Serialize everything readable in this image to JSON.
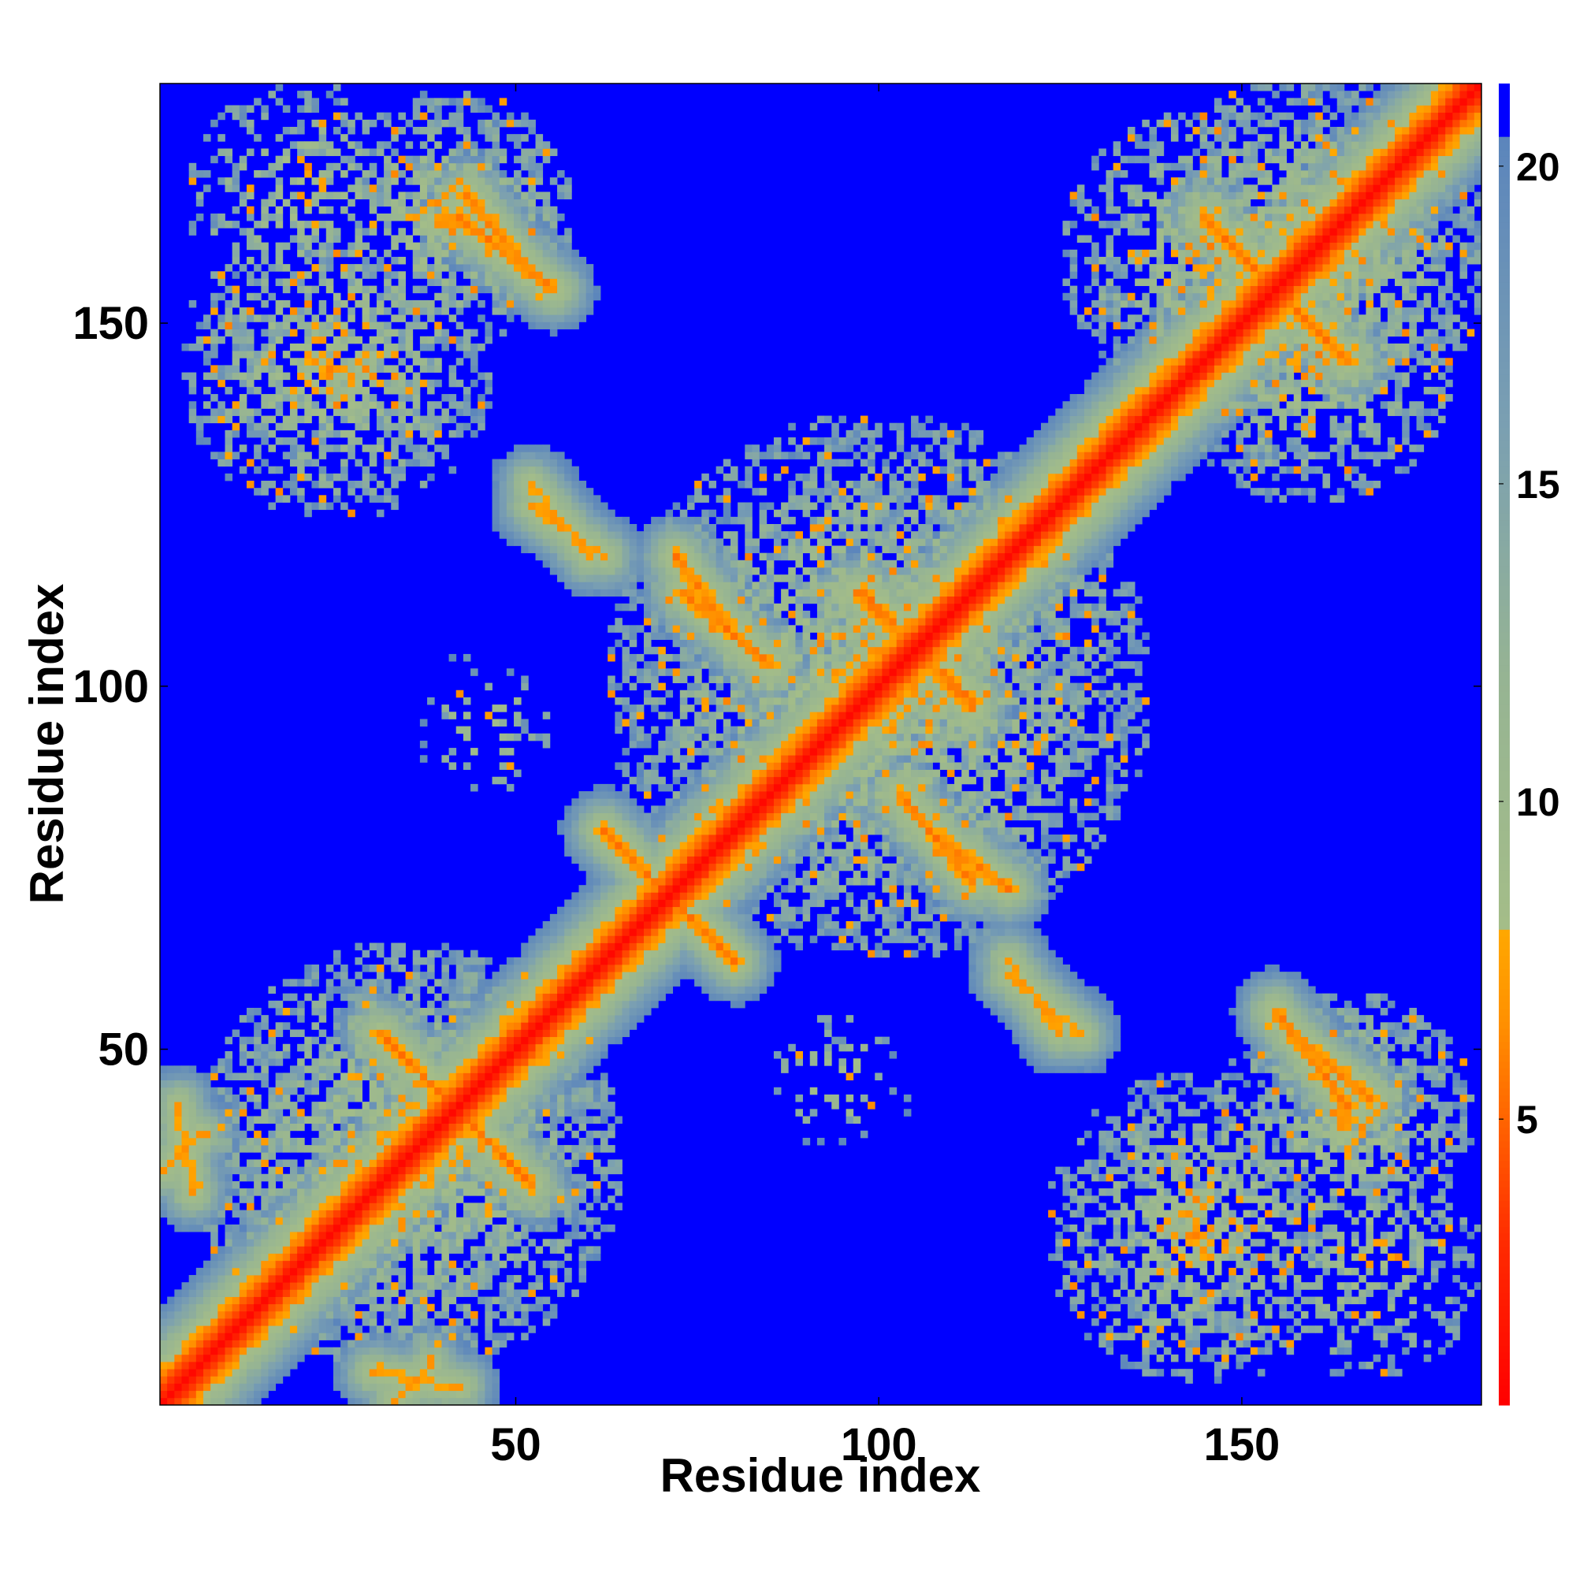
{
  "chart_data": {
    "type": "heatmap",
    "title": "",
    "xlabel": "Residue index",
    "ylabel": "Residue index",
    "n_residues": 183,
    "xlim": [
      1,
      183
    ],
    "ylim": [
      1,
      183
    ],
    "x_ticks": [
      50,
      100,
      150
    ],
    "y_ticks": [
      50,
      100,
      150
    ],
    "colorbar": {
      "range": [
        0.5,
        21.3
      ],
      "ticks": [
        5,
        10,
        15,
        20
      ],
      "stops": [
        {
          "value": 0.5,
          "color": "#ff0000"
        },
        {
          "value": 3.0,
          "color": "#ff2a00"
        },
        {
          "value": 5.0,
          "color": "#ff6400"
        },
        {
          "value": 6.5,
          "color": "#ff9000"
        },
        {
          "value": 8.0,
          "color": "#ffa800"
        },
        {
          "value": 8.01,
          "color": "#a4bd88"
        },
        {
          "value": 12.0,
          "color": "#96b493"
        },
        {
          "value": 16.0,
          "color": "#7a9fb2"
        },
        {
          "value": 20.5,
          "color": "#5b85bc"
        },
        {
          "value": 20.51,
          "color": "#0000ff"
        },
        {
          "value": 21.3,
          "color": "#0000ff"
        }
      ]
    },
    "contact_segments": [
      {
        "kind": "diagonal",
        "from": [
          1,
          1
        ],
        "to": [
          183,
          183
        ],
        "distance": 1
      },
      {
        "kind": "anti",
        "from": [
          31,
          52
        ],
        "to": [
          51,
          32
        ],
        "distance": 6
      },
      {
        "kind": "anti",
        "from": [
          42,
          165
        ],
        "to": [
          55,
          155
        ],
        "distance": 6
      },
      {
        "kind": "anti",
        "from": [
          64,
          78
        ],
        "to": [
          80,
          62
        ],
        "distance": 6
      },
      {
        "kind": "anti",
        "from": [
          73,
          113
        ],
        "to": [
          85,
          103
        ],
        "distance": 6
      },
      {
        "kind": "anti",
        "from": [
          97,
          113
        ],
        "to": [
          113,
          98
        ],
        "distance": 6
      },
      {
        "kind": "anti",
        "from": [
          107,
          80
        ],
        "to": [
          118,
          72
        ],
        "distance": 6
      },
      {
        "kind": "anti",
        "from": [
          145,
          165
        ],
        "to": [
          165,
          145
        ],
        "distance": 6
      },
      {
        "kind": "anti",
        "from": [
          157,
          52
        ],
        "to": [
          168,
          43
        ],
        "distance": 6
      },
      {
        "kind": "parallel",
        "from": [
          52,
          125
        ],
        "to": [
          62,
          118
        ],
        "distance": 7
      },
      {
        "kind": "parallel",
        "from": [
          118,
          60
        ],
        "to": [
          128,
          52
        ],
        "distance": 7
      },
      {
        "kind": "parallel",
        "from": [
          30,
          5
        ],
        "to": [
          42,
          3
        ],
        "distance": 7
      },
      {
        "kind": "parallel",
        "from": [
          1,
          33
        ],
        "to": [
          6,
          38
        ],
        "distance": 7
      }
    ],
    "contact_regions": [
      {
        "center": [
          35,
          35
        ],
        "radius": 30,
        "density": 0.7
      },
      {
        "center": [
          100,
          100
        ],
        "radius": 38,
        "density": 0.7
      },
      {
        "center": [
          160,
          160
        ],
        "radius": 25,
        "density": 0.7
      },
      {
        "center": [
          25,
          145
        ],
        "radius": 22,
        "density": 0.6
      },
      {
        "center": [
          145,
          25
        ],
        "radius": 22,
        "density": 0.6
      },
      {
        "center": [
          40,
          165
        ],
        "radius": 18,
        "density": 0.55
      },
      {
        "center": [
          165,
          40
        ],
        "radius": 18,
        "density": 0.55
      },
      {
        "center": [
          20,
          168
        ],
        "radius": 16,
        "density": 0.35
      },
      {
        "center": [
          168,
          20
        ],
        "radius": 16,
        "density": 0.35
      },
      {
        "center": [
          160,
          145
        ],
        "radius": 20,
        "density": 0.5
      },
      {
        "center": [
          145,
          160
        ],
        "radius": 20,
        "density": 0.5
      },
      {
        "center": [
          95,
          45
        ],
        "radius": 10,
        "density": 0.2
      },
      {
        "center": [
          45,
          95
        ],
        "radius": 10,
        "density": 0.2
      }
    ]
  }
}
